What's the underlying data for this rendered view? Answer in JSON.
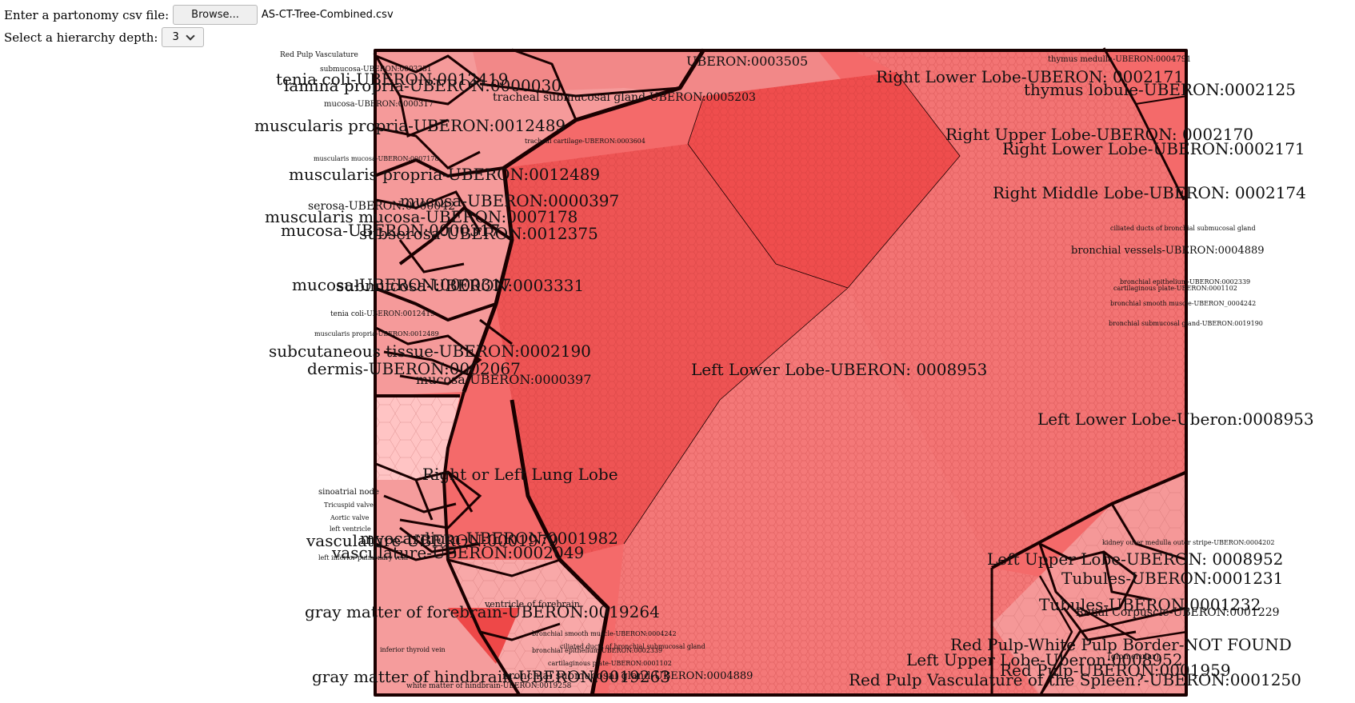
{
  "controls": {
    "file_label": "Enter a partonomy csv file:",
    "browse_label": "Browse...",
    "file_name": "AS-CT-Tree-Combined.csv",
    "depth_label": "Select a hierarchy depth:",
    "depth_value": "3"
  },
  "colors": {
    "border": "#1a0000",
    "cell_light": "#ffb3b3",
    "cell_mid": "#f47070",
    "cell_strong": "#ee4a4a"
  },
  "labels": {
    "large": [
      "tenia coli-UBERON:0012419",
      "lamina propria-UBERON:0000030",
      "muscularis propria-UBERON:0012489",
      "muscularis propria-UBERON:0012489",
      "mucosa-UBERON:0000397",
      "serosa-UBERON:0000042",
      "muscularis mucosa-UBERON:0007178",
      "mucosa-UBERON:0000317",
      "subserosa-UBERON:0012375",
      "mucosa-UBERON:0000317",
      "submucosa-UBERON:0003331",
      "subcutaneous tissue-UBERON:0002190",
      "dermis-UBERON:0002067",
      "mucosa-UBERON:0000397",
      "Right or Left Lung Lobe",
      "vasculature-UBERON:0002049",
      "vasculature-UBERON:0001979",
      "myocardium-UBERON:0001982",
      "gray matter of forebrain-UBERON:0019264",
      "gray matter of hindbrain-UBERON:0019263",
      "Right Lower Lobe-UBERON: 0002171",
      "thymus lobule-UBERON:0002125",
      "Right Upper Lobe-UBERON: 0002170",
      "Right Lower Lobe-UBERON:0002171",
      "Right Middle Lobe-UBERON: 0002174",
      "Left Lower Lobe-UBERON: 0008953",
      "Left Lower Lobe-Uberon:0008953",
      "Left Upper Lobe-UBERON: 0008952",
      "Tubules-UBERON:0001231",
      "Tubules-UBERON:0001232",
      "Red Pulp-White Pulp Border-NOT FOUND",
      "Left Upper Lobe-Uberon:0008952",
      "Red Pulp-UBERON:0001959",
      "Red Pulp Vasculature of the Spleen?-UBERON:0001250"
    ],
    "medium": [
      "tracheal submucosal gland-UBERON:0005203",
      "UBERON:0003505",
      "bronchial vessels-UBERON:0004889",
      "bronchial submucosal gland-UBERON:0004889",
      "thymus medulla-UBERON:0004791"
    ],
    "small": [
      "tracheal cartilage-UBERON:0003604",
      "ciliated ducts of bronchial submucosal gland",
      "bronchial epithelium-UBERON:0002339",
      "cartilaginous plate-UBERON:0001102",
      "bronchial smooth muscle-UBERON_0004242",
      "bronchial submucosal gland-UBERON:0019190",
      "kidney outer medulla outer stripe-UBERON:0004202",
      "Renal Corpuscle-UBERON:0001229",
      "ventricle of forebrain",
      "bronchial smooth muscle-UBERON:0004242",
      "ciliated ducts of bronchial submucosal gland",
      "bronchial epithelium-UBERON:0002339",
      "cartilaginous plate-UBERON:0001102",
      "inferior thyroid vein",
      "white matter of hindbrain-UBERON:0019258",
      "sinoatrial node",
      "Tricuspid valve",
      "Aortic valve",
      "left inferior pulmonary vein",
      "left ventricle",
      "tenia coli-UBERON:0012419",
      "muscularis propria-UBERON:0012489",
      "muscularis mucosa-UBERON:0007178",
      "mucosa-UBERON:0000317",
      "submucosa-UBERON:0003331",
      "Red Pulp Vasculature",
      "(glomerular)"
    ]
  }
}
